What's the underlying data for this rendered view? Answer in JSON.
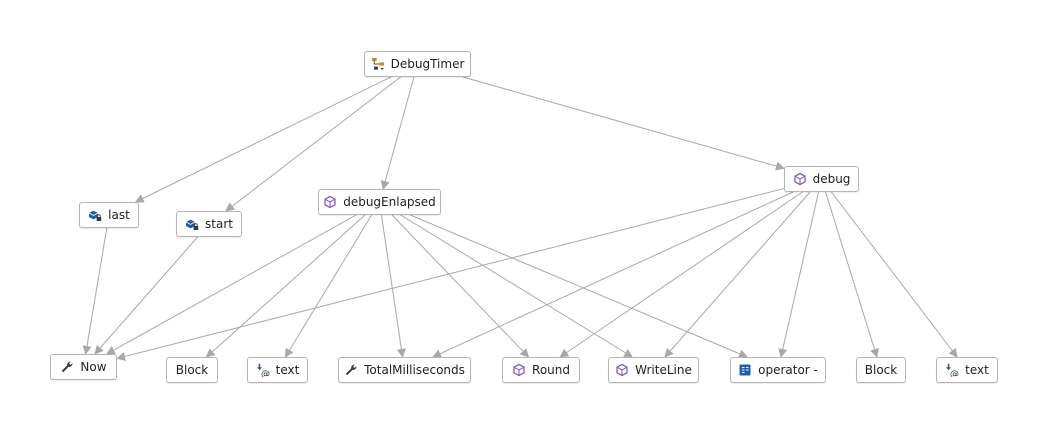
{
  "graph": {
    "nodes": [
      {
        "id": "DebugTimer",
        "label": "DebugTimer",
        "icon": "class-icon"
      },
      {
        "id": "last",
        "label": "last",
        "icon": "private-field-icon"
      },
      {
        "id": "start",
        "label": "start",
        "icon": "private-field-icon"
      },
      {
        "id": "debugEnlapsed",
        "label": "debugEnlapsed",
        "icon": "method-icon"
      },
      {
        "id": "debug",
        "label": "debug",
        "icon": "method-icon"
      },
      {
        "id": "Now",
        "label": "Now",
        "icon": "property-icon"
      },
      {
        "id": "Block1",
        "label": "Block",
        "icon": ""
      },
      {
        "id": "text1",
        "label": "text",
        "icon": "parameter-icon"
      },
      {
        "id": "TotalMilliseconds",
        "label": "TotalMilliseconds",
        "icon": "property-icon"
      },
      {
        "id": "Round",
        "label": "Round",
        "icon": "method-icon"
      },
      {
        "id": "WriteLine",
        "label": "WriteLine",
        "icon": "method-icon"
      },
      {
        "id": "operatorMinus",
        "label": "operator -",
        "icon": "operator-icon"
      },
      {
        "id": "Block2",
        "label": "Block",
        "icon": ""
      },
      {
        "id": "text2",
        "label": "text",
        "icon": "parameter-icon"
      }
    ],
    "edges": [
      [
        "DebugTimer",
        "last"
      ],
      [
        "DebugTimer",
        "start"
      ],
      [
        "DebugTimer",
        "debugEnlapsed"
      ],
      [
        "DebugTimer",
        "debug"
      ],
      [
        "last",
        "Now"
      ],
      [
        "start",
        "Now"
      ],
      [
        "debugEnlapsed",
        "Now"
      ],
      [
        "debugEnlapsed",
        "Block1"
      ],
      [
        "debugEnlapsed",
        "text1"
      ],
      [
        "debugEnlapsed",
        "TotalMilliseconds"
      ],
      [
        "debugEnlapsed",
        "Round"
      ],
      [
        "debugEnlapsed",
        "WriteLine"
      ],
      [
        "debugEnlapsed",
        "operatorMinus"
      ],
      [
        "debug",
        "Now"
      ],
      [
        "debug",
        "TotalMilliseconds"
      ],
      [
        "debug",
        "Round"
      ],
      [
        "debug",
        "WriteLine"
      ],
      [
        "debug",
        "operatorMinus"
      ],
      [
        "debug",
        "Block2"
      ],
      [
        "debug",
        "text2"
      ]
    ]
  },
  "colors": {
    "edge": "#a8a8a8",
    "node_border": "#b4b4b4",
    "method_purple": "#8a5cc2",
    "field_blue": "#1f5fa8",
    "class_orange": "#c88a1e"
  }
}
